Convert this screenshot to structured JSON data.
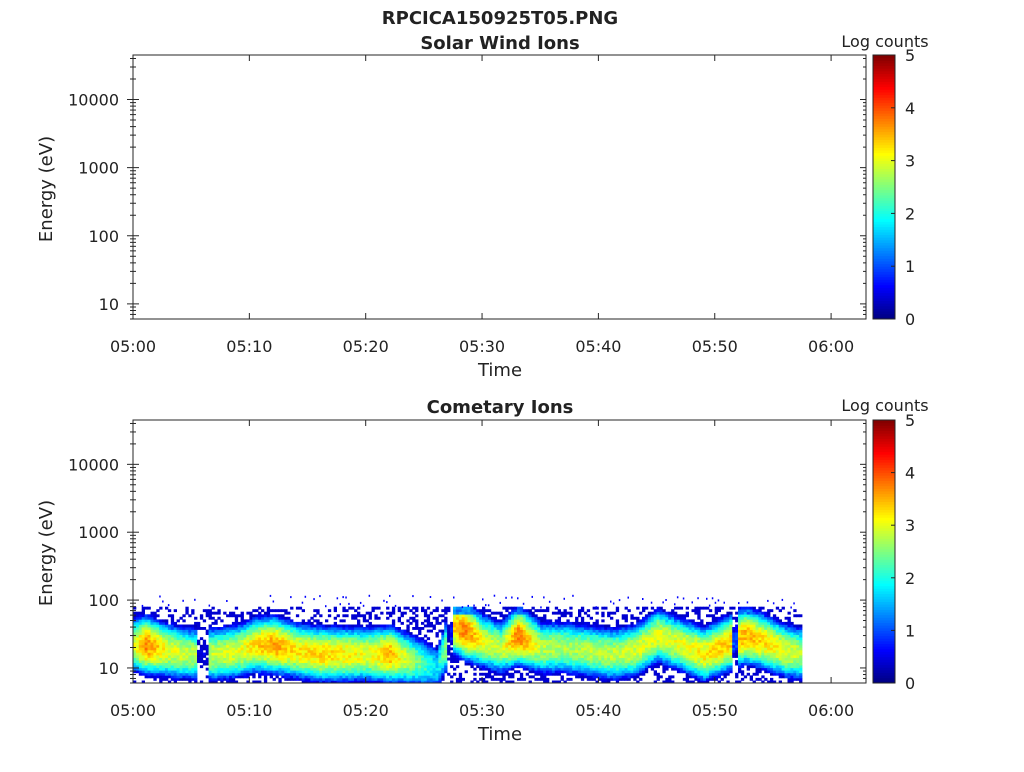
{
  "figure_title": "RPCICA150925T05.PNG",
  "colors": {
    "colormap": [
      "#00007f",
      "#0000ff",
      "#007fff",
      "#00ffff",
      "#7fff7f",
      "#ffff00",
      "#ff7f00",
      "#ff0000",
      "#7f0000"
    ]
  },
  "chart_data": [
    {
      "type": "heatmap",
      "title": "Solar Wind Ions",
      "xlabel": "Time",
      "ylabel": "Energy (eV)",
      "colorbar_label": "Log counts",
      "x_ticks": [
        "05:00",
        "05:10",
        "05:20",
        "05:30",
        "05:40",
        "05:50",
        "06:00"
      ],
      "x_range": [
        "05:00",
        "06:03"
      ],
      "y_scale": "log",
      "y_ticks": [
        10,
        100,
        1000,
        10000
      ],
      "y_tick_labels": [
        "10",
        "100",
        "1000",
        "10000"
      ],
      "y_range": [
        6,
        45000
      ],
      "colorbar_ticks": [
        "0",
        "1",
        "2",
        "3",
        "4",
        "5"
      ],
      "colorbar_range": [
        0,
        5
      ],
      "data_present": false
    },
    {
      "type": "heatmap",
      "title": "Cometary Ions",
      "xlabel": "Time",
      "ylabel": "Energy (eV)",
      "colorbar_label": "Log counts",
      "x_ticks": [
        "05:00",
        "05:10",
        "05:20",
        "05:30",
        "05:40",
        "05:50",
        "06:00"
      ],
      "x_range": [
        "05:00",
        "06:03"
      ],
      "y_scale": "log",
      "y_ticks": [
        10,
        100,
        1000,
        10000
      ],
      "y_tick_labels": [
        "10",
        "100",
        "1000",
        "10000"
      ],
      "y_range": [
        6,
        45000
      ],
      "colorbar_ticks": [
        "0",
        "1",
        "2",
        "3",
        "4",
        "5"
      ],
      "colorbar_range": [
        0,
        5
      ],
      "data_present": true,
      "data_time_range": [
        "05:00",
        "05:57.5"
      ],
      "energy_range_with_counts_eV": [
        6,
        80
      ],
      "gaps_minutes": [
        [
          5.5,
          6.5
        ],
        [
          26.8,
          27.4
        ],
        [
          51.3,
          52.0
        ]
      ],
      "peak_profile": [
        {
          "t": 0.0,
          "e_peak": 22,
          "log_counts": 3.0
        },
        {
          "t": 1.0,
          "e_peak": 22,
          "log_counts": 3.7
        },
        {
          "t": 3.0,
          "e_peak": 18,
          "log_counts": 3.0
        },
        {
          "t": 5.0,
          "e_peak": 16,
          "log_counts": 2.8
        },
        {
          "t": 7.0,
          "e_peak": 16,
          "log_counts": 2.9
        },
        {
          "t": 9.0,
          "e_peak": 18,
          "log_counts": 3.0
        },
        {
          "t": 10.5,
          "e_peak": 22,
          "log_counts": 3.3
        },
        {
          "t": 12.0,
          "e_peak": 22,
          "log_counts": 3.6
        },
        {
          "t": 14.0,
          "e_peak": 18,
          "log_counts": 3.2
        },
        {
          "t": 16.0,
          "e_peak": 16,
          "log_counts": 3.3
        },
        {
          "t": 18.0,
          "e_peak": 16,
          "log_counts": 3.2
        },
        {
          "t": 20.0,
          "e_peak": 16,
          "log_counts": 3.0
        },
        {
          "t": 22.0,
          "e_peak": 16,
          "log_counts": 3.5
        },
        {
          "t": 24.0,
          "e_peak": 13,
          "log_counts": 2.6
        },
        {
          "t": 26.0,
          "e_peak": 10,
          "log_counts": 1.8
        },
        {
          "t": 27.5,
          "e_peak": 40,
          "log_counts": 3.4
        },
        {
          "t": 28.5,
          "e_peak": 35,
          "log_counts": 3.8
        },
        {
          "t": 30.0,
          "e_peak": 25,
          "log_counts": 3.0
        },
        {
          "t": 31.5,
          "e_peak": 20,
          "log_counts": 2.8
        },
        {
          "t": 33.0,
          "e_peak": 30,
          "log_counts": 3.8
        },
        {
          "t": 35.0,
          "e_peak": 20,
          "log_counts": 2.8
        },
        {
          "t": 37.0,
          "e_peak": 20,
          "log_counts": 2.7
        },
        {
          "t": 39.0,
          "e_peak": 18,
          "log_counts": 2.8
        },
        {
          "t": 41.0,
          "e_peak": 16,
          "log_counts": 2.8
        },
        {
          "t": 43.0,
          "e_peak": 18,
          "log_counts": 2.9
        },
        {
          "t": 45.0,
          "e_peak": 30,
          "log_counts": 3.0
        },
        {
          "t": 47.0,
          "e_peak": 22,
          "log_counts": 3.0
        },
        {
          "t": 49.0,
          "e_peak": 16,
          "log_counts": 3.2
        },
        {
          "t": 52.5,
          "e_peak": 30,
          "log_counts": 3.5
        },
        {
          "t": 54.0,
          "e_peak": 25,
          "log_counts": 3.3
        },
        {
          "t": 56.0,
          "e_peak": 18,
          "log_counts": 3.0
        },
        {
          "t": 57.5,
          "e_peak": 16,
          "log_counts": 2.8
        }
      ]
    }
  ]
}
